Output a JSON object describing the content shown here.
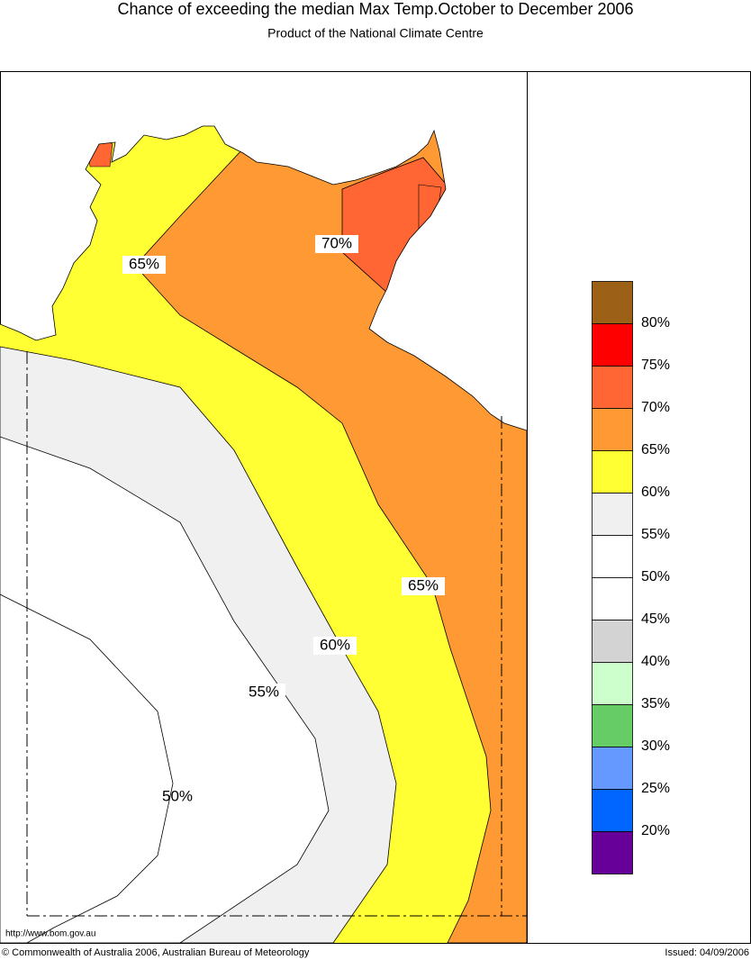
{
  "header": {
    "title": "Chance of exceeding the median Max Temp.October to December 2006",
    "subtitle": "Product of the National Climate Centre"
  },
  "map": {
    "contour_labels": [
      "65%",
      "70%",
      "65%",
      "60%",
      "55%",
      "50%"
    ]
  },
  "legend": {
    "colors": [
      "#9c6117",
      "#ff0000",
      "#ff6633",
      "#ff9933",
      "#ffff33",
      "#f0f0f0",
      "#ffffff",
      "#ffffff",
      "#d3d3d3",
      "#ccffcc",
      "#66cc66",
      "#6699ff",
      "#0066ff",
      "#660099"
    ],
    "labels": [
      "80%",
      "75%",
      "70%",
      "65%",
      "60%",
      "55%",
      "50%",
      "45%",
      "40%",
      "35%",
      "30%",
      "25%",
      "20%"
    ]
  },
  "footer": {
    "url": "http://www.bom.gov.au",
    "copyright": "© Commonwealth of Australia 2006, Australian Bureau of Meteorology",
    "issued": "Issued: 04/09/2006"
  }
}
